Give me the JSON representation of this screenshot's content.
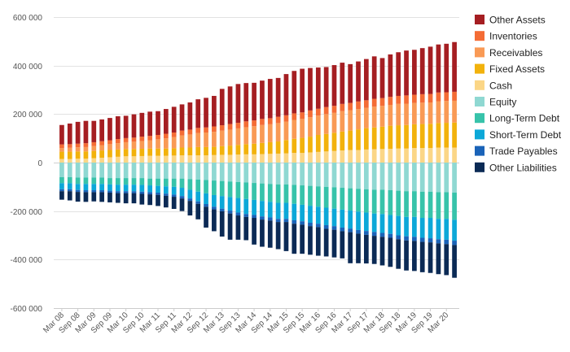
{
  "chart_data": {
    "type": "bar",
    "stacked": true,
    "ylim": [
      -600000,
      600000
    ],
    "y_ticks": [
      600000,
      400000,
      200000,
      0,
      -200000,
      -400000,
      -600000
    ],
    "y_tick_labels": [
      "600 000",
      "400 000",
      "200 000",
      "0",
      "-200 000",
      "-400 000",
      "-600 000"
    ],
    "x_tick_labels": [
      "Mar 08",
      "Sep 08",
      "Mar 09",
      "Sep 09",
      "Mar 10",
      "Sep 10",
      "Mar 11",
      "Sep 11",
      "Mar 12",
      "Sep 12",
      "Mar 13",
      "Sep 13",
      "Mar 14",
      "Sep 14",
      "Mar 15",
      "Sep 15",
      "Mar 16",
      "Sep 16",
      "Mar 17",
      "Sep 17",
      "Mar 18",
      "Sep 18",
      "Mar 19",
      "Sep 19",
      "Mar 20"
    ],
    "grid": "horizontal",
    "legend_position": "right",
    "categories": [
      "Mar 08",
      "Jun 08",
      "Sep 08",
      "Dec 08",
      "Mar 09",
      "Jun 09",
      "Sep 09",
      "Dec 09",
      "Mar 10",
      "Jun 10",
      "Sep 10",
      "Dec 10",
      "Mar 11",
      "Jun 11",
      "Sep 11",
      "Dec 11",
      "Mar 12",
      "Jun 12",
      "Sep 12",
      "Dec 12",
      "Mar 13",
      "Jun 13",
      "Sep 13",
      "Dec 13",
      "Mar 14",
      "Jun 14",
      "Sep 14",
      "Dec 14",
      "Mar 15",
      "Jun 15",
      "Sep 15",
      "Dec 15",
      "Mar 16",
      "Jun 16",
      "Sep 16",
      "Dec 16",
      "Mar 17",
      "Jun 17",
      "Sep 17",
      "Dec 17",
      "Mar 18",
      "Jun 18",
      "Sep 18",
      "Dec 18",
      "Mar 19",
      "Jun 19",
      "Sep 19",
      "Dec 19",
      "Mar 20",
      "Jun 20"
    ],
    "series": [
      {
        "name": "Other Assets",
        "color": "#a51e22",
        "side": "positive",
        "values": [
          80000,
          85000,
          90000,
          92000,
          88000,
          90000,
          92000,
          94000,
          92000,
          96000,
          98000,
          100000,
          98000,
          102000,
          106000,
          108000,
          112000,
          118000,
          122000,
          126000,
          150000,
          155000,
          160000,
          158000,
          155000,
          158000,
          162000,
          160000,
          170000,
          175000,
          180000,
          175000,
          170000,
          165000,
          168000,
          170000,
          160000,
          165000,
          170000,
          175000,
          165000,
          175000,
          180000,
          185000,
          185000,
          190000,
          195000,
          198000,
          200000,
          205000
        ]
      },
      {
        "name": "Inventories",
        "color": "#f46c35",
        "side": "positive",
        "values": [
          15000,
          15000,
          15000,
          16000,
          16000,
          16000,
          16000,
          17000,
          17000,
          17000,
          18000,
          18000,
          18000,
          19000,
          19000,
          20000,
          20000,
          21000,
          21000,
          22000,
          22000,
          23000,
          23000,
          24000,
          24000,
          25000,
          25000,
          26000,
          26000,
          27000,
          27000,
          28000,
          28000,
          29000,
          29000,
          30000,
          30000,
          31000,
          31000,
          32000,
          32000,
          33000,
          33000,
          34000,
          34000,
          35000,
          35000,
          36000,
          36000,
          37000
        ]
      },
      {
        "name": "Receivables",
        "color": "#f99a55",
        "side": "positive",
        "values": [
          15000,
          16000,
          17000,
          18000,
          20000,
          22000,
          24000,
          26000,
          28000,
          30000,
          32000,
          34000,
          38000,
          42000,
          46000,
          50000,
          54000,
          58000,
          60000,
          62000,
          64000,
          66000,
          68000,
          70000,
          72000,
          74000,
          74000,
          76000,
          76000,
          78000,
          78000,
          80000,
          80000,
          82000,
          82000,
          84000,
          84000,
          84000,
          84000,
          86000,
          86000,
          86000,
          88000,
          88000,
          88000,
          88000,
          88000,
          90000,
          90000,
          90000
        ]
      },
      {
        "name": "Fixed Assets",
        "color": "#f2b20c",
        "side": "positive",
        "values": [
          30000,
          30000,
          30000,
          30000,
          30000,
          30000,
          30000,
          30000,
          30000,
          30000,
          30000,
          30000,
          30000,
          30000,
          30000,
          32000,
          32000,
          34000,
          34000,
          34000,
          36000,
          38000,
          40000,
          42000,
          44000,
          46000,
          48000,
          50000,
          55000,
          58000,
          62000,
          65000,
          70000,
          72000,
          75000,
          78000,
          80000,
          85000,
          88000,
          90000,
          92000,
          95000,
          96000,
          97000,
          98000,
          99000,
          100000,
          101000,
          102000,
          103000
        ]
      },
      {
        "name": "Cash",
        "color": "#fbd686",
        "side": "positive",
        "values": [
          15000,
          15000,
          16000,
          16000,
          18000,
          20000,
          22000,
          24000,
          26000,
          26000,
          27000,
          28000,
          28000,
          28000,
          29000,
          30000,
          30000,
          30000,
          30000,
          31000,
          32000,
          32000,
          33000,
          34000,
          34000,
          35000,
          36000,
          37000,
          38000,
          40000,
          40000,
          42000,
          44000,
          46000,
          48000,
          50000,
          52000,
          52000,
          54000,
          55000,
          56000,
          57000,
          58000,
          58000,
          60000,
          60000,
          60000,
          62000,
          62000,
          62000
        ]
      },
      {
        "name": "Equity",
        "color": "#8fd8d2",
        "side": "negative",
        "values": [
          -60000,
          -60000,
          -62000,
          -62000,
          -62000,
          -62000,
          -64000,
          -64000,
          -64000,
          -64000,
          -64000,
          -66000,
          -66000,
          -66000,
          -66000,
          -66000,
          -68000,
          -70000,
          -72000,
          -74000,
          -76000,
          -78000,
          -80000,
          -82000,
          -84000,
          -86000,
          -88000,
          -90000,
          -90000,
          -92000,
          -94000,
          -96000,
          -98000,
          -100000,
          -102000,
          -104000,
          -106000,
          -108000,
          -110000,
          -112000,
          -112000,
          -114000,
          -116000,
          -118000,
          -118000,
          -120000,
          -120000,
          -122000,
          -122000,
          -124000
        ]
      },
      {
        "name": "Long-Term Debt",
        "color": "#37c3aa",
        "side": "negative",
        "values": [
          -25000,
          -25000,
          -26000,
          -26000,
          -26000,
          -26000,
          -26000,
          -27000,
          -27000,
          -27000,
          -28000,
          -28000,
          -30000,
          -32000,
          -34000,
          -38000,
          -44000,
          -50000,
          -55000,
          -60000,
          -62000,
          -64000,
          -66000,
          -68000,
          -70000,
          -72000,
          -74000,
          -76000,
          -76000,
          -78000,
          -80000,
          -82000,
          -84000,
          -86000,
          -88000,
          -90000,
          -92000,
          -94000,
          -96000,
          -98000,
          -100000,
          -102000,
          -104000,
          -106000,
          -106000,
          -108000,
          -108000,
          -110000,
          -110000,
          -112000
        ]
      },
      {
        "name": "Short-Term Debt",
        "color": "#0ca8d8",
        "side": "negative",
        "values": [
          -25000,
          -25000,
          -25000,
          -26000,
          -26000,
          -26000,
          -26000,
          -27000,
          -27000,
          -27000,
          -28000,
          -28000,
          -28000,
          -30000,
          -32000,
          -34000,
          -36000,
          -40000,
          -44000,
          -48000,
          -52000,
          -56000,
          -60000,
          -62000,
          -62000,
          -64000,
          -64000,
          -66000,
          -66000,
          -68000,
          -68000,
          -70000,
          -70000,
          -72000,
          -72000,
          -74000,
          -74000,
          -76000,
          -76000,
          -76000,
          -78000,
          -78000,
          -80000,
          -80000,
          -82000,
          -82000,
          -84000,
          -84000,
          -86000,
          -86000
        ]
      },
      {
        "name": "Trade Payables",
        "color": "#1a63b8",
        "side": "negative",
        "values": [
          -8000,
          -8000,
          -8000,
          -8000,
          -8000,
          -8000,
          -8000,
          -8000,
          -8000,
          -8000,
          -9000,
          -9000,
          -9000,
          -9000,
          -9000,
          -10000,
          -10000,
          -10000,
          -11000,
          -11000,
          -11000,
          -12000,
          -12000,
          -12000,
          -12000,
          -13000,
          -13000,
          -13000,
          -13000,
          -14000,
          -14000,
          -14000,
          -14000,
          -15000,
          -15000,
          -15000,
          -15000,
          -15000,
          -16000,
          -16000,
          -16000,
          -16000,
          -16000,
          -17000,
          -17000,
          -17000,
          -17000,
          -17000,
          -18000,
          -18000
        ]
      },
      {
        "name": "Other Liabilities",
        "color": "#0b2a55",
        "side": "negative",
        "values": [
          -35000,
          -38000,
          -40000,
          -40000,
          -38000,
          -40000,
          -40000,
          -40000,
          -42000,
          -42000,
          -44000,
          -44000,
          -46000,
          -48000,
          -50000,
          -52000,
          -60000,
          -64000,
          -86000,
          -90000,
          -104000,
          -108000,
          -100000,
          -96000,
          -110000,
          -112000,
          -112000,
          -112000,
          -120000,
          -124000,
          -120000,
          -118000,
          -118000,
          -114000,
          -114000,
          -112000,
          -128000,
          -122000,
          -118000,
          -116000,
          -118000,
          -120000,
          -122000,
          -124000,
          -124000,
          -125000,
          -126000,
          -127000,
          -128000,
          -135000
        ]
      }
    ]
  }
}
